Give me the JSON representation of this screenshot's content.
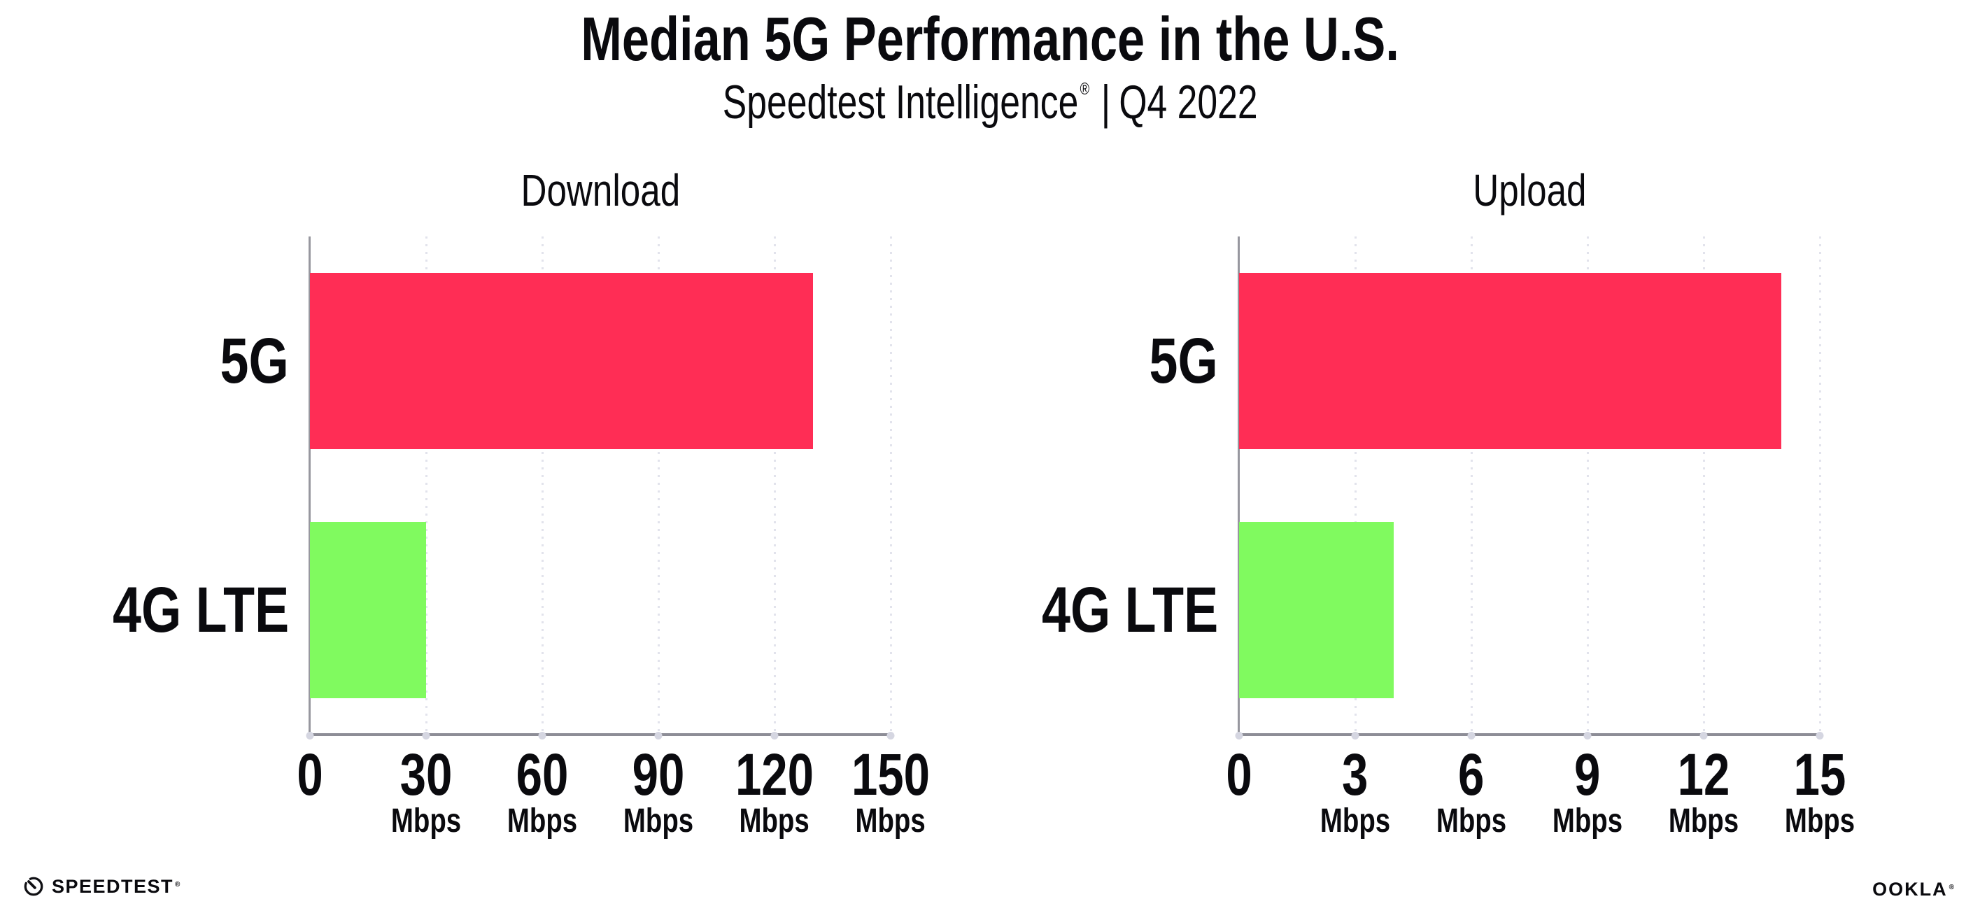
{
  "header": {
    "title": "Median 5G Performance in the U.S.",
    "subtitle": {
      "brand": "Speedtest Intelligence",
      "reg": "®",
      "sep": "|",
      "period": "Q4 2022"
    }
  },
  "chart_data": [
    {
      "type": "bar",
      "orientation": "horizontal",
      "title": "Download",
      "categories": [
        "5G",
        "4G LTE"
      ],
      "values": [
        130,
        30
      ],
      "unit": "Mbps",
      "xlim": [
        0,
        150
      ],
      "grid": "vertical-dotted",
      "legend": "none",
      "ticks": [
        {
          "label": "0",
          "unit": ""
        },
        {
          "label": "30",
          "unit": "Mbps"
        },
        {
          "label": "60",
          "unit": "Mbps"
        },
        {
          "label": "90",
          "unit": "Mbps"
        },
        {
          "label": "120",
          "unit": "Mbps"
        },
        {
          "label": "150",
          "unit": "Mbps"
        }
      ],
      "series": [
        {
          "name": "5G",
          "value": 130,
          "color": "#ff2d55"
        },
        {
          "name": "4G LTE",
          "value": 30,
          "color": "#80fa5f"
        }
      ]
    },
    {
      "type": "bar",
      "orientation": "horizontal",
      "title": "Upload",
      "categories": [
        "5G",
        "4G LTE"
      ],
      "values": [
        14,
        4
      ],
      "unit": "Mbps",
      "xlim": [
        0,
        15
      ],
      "grid": "vertical-dotted",
      "legend": "none",
      "ticks": [
        {
          "label": "0",
          "unit": ""
        },
        {
          "label": "3",
          "unit": "Mbps"
        },
        {
          "label": "6",
          "unit": "Mbps"
        },
        {
          "label": "9",
          "unit": "Mbps"
        },
        {
          "label": "12",
          "unit": "Mbps"
        },
        {
          "label": "15",
          "unit": "Mbps"
        }
      ],
      "series": [
        {
          "name": "5G",
          "value": 14,
          "color": "#ff2d55"
        },
        {
          "name": "4G LTE",
          "value": 4,
          "color": "#80fa5f"
        }
      ]
    }
  ],
  "footer": {
    "speedtest": {
      "label": "SPEEDTEST",
      "mark": "®"
    },
    "ookla": {
      "label": "OOKLA",
      "mark": "®"
    }
  },
  "colors": {
    "bar_5g": "#ff2d55",
    "bar_4g_lte": "#80fa5f",
    "axis": "#8d8d96",
    "gridline": "#e2e3ec",
    "tick_dot": "#d5d6e1",
    "text": "#0a0a0e"
  }
}
